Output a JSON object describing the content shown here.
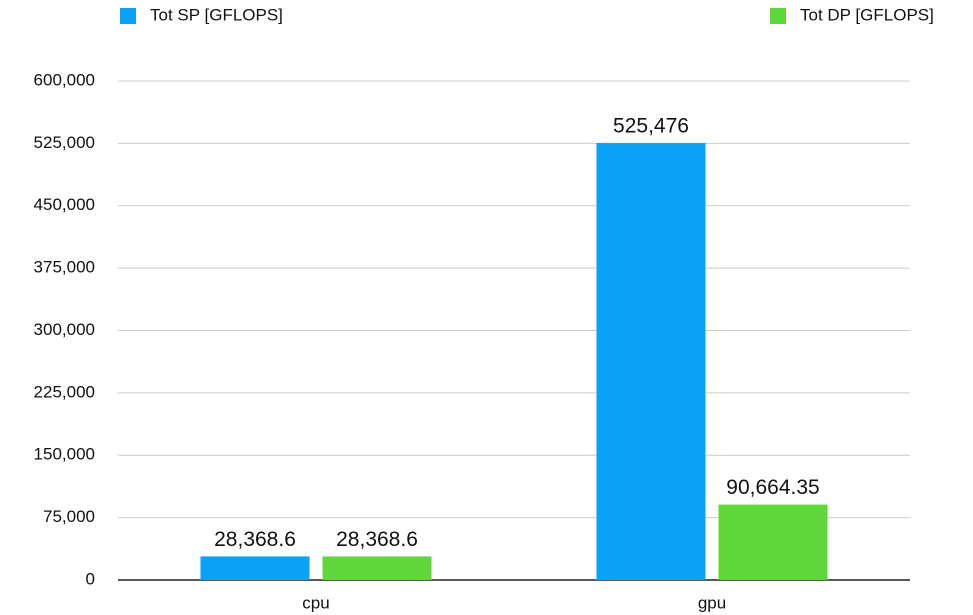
{
  "chart_data": {
    "type": "bar",
    "categories": [
      "cpu",
      "gpu"
    ],
    "series": [
      {
        "name": "Tot SP [GFLOPS]",
        "color": "#0aa2f5",
        "values": [
          28368.6,
          525476
        ],
        "value_labels": [
          "28,368.6",
          "525,476"
        ]
      },
      {
        "name": "Tot DP [GFLOPS]",
        "color": "#5fd63a",
        "values": [
          28368.6,
          90664.35
        ],
        "value_labels": [
          "28,368.6",
          "90,664.35"
        ]
      }
    ],
    "ylim": [
      0,
      600000
    ],
    "yticks": [
      0,
      {
        "value": 75000,
        "label": "75,000"
      },
      {
        "value": 150000,
        "label": "150,000"
      },
      {
        "value": 225000,
        "label": "225,000"
      },
      {
        "value": 300000,
        "label": "300,000"
      },
      {
        "value": 375000,
        "label": "375,000"
      },
      {
        "value": 450000,
        "label": "450,000"
      },
      {
        "value": 525000,
        "label": "525,000"
      },
      {
        "value": 600000,
        "label": "600,000"
      }
    ],
    "grid": true,
    "legend": "top"
  }
}
